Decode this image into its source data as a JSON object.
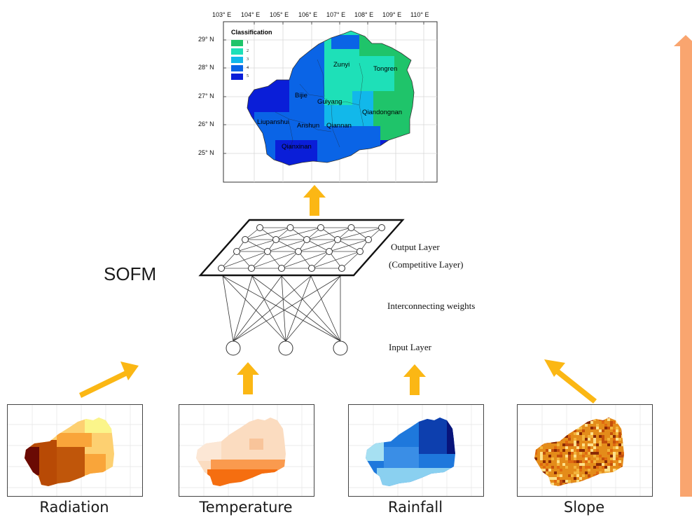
{
  "map": {
    "lon_labels": [
      "103° E",
      "104° E",
      "105° E",
      "106° E",
      "107° E",
      "108° E",
      "109° E",
      "110° E"
    ],
    "lat_labels": [
      "29° N",
      "28° N",
      "27° N",
      "26° N",
      "25° N"
    ],
    "legend": {
      "title": "Classification",
      "classes": [
        {
          "label": "1",
          "color": "#1fc46a"
        },
        {
          "label": "2",
          "color": "#1ee0b8"
        },
        {
          "label": "3",
          "color": "#12b8ea"
        },
        {
          "label": "4",
          "color": "#0a64e6"
        },
        {
          "label": "5",
          "color": "#0a1ed8"
        }
      ]
    },
    "cities": [
      "Zunyi",
      "Tongren",
      "Bijie",
      "Guiyang",
      "Qiandongnan",
      "Liupanshui",
      "Anshun",
      "Qiannan",
      "Qianxinan"
    ]
  },
  "network": {
    "title": "SOFM",
    "output_layer": "Output Layer",
    "competitive_layer": "(Competitive Layer)",
    "weights": "Interconnecting weights",
    "input_layer": "Input Layer"
  },
  "inputs": [
    "Radiation",
    "Temperature",
    "Rainfall",
    "Slope"
  ],
  "colors": {
    "arrow": "#fbb714",
    "side_arrow": "#f9a56f"
  }
}
